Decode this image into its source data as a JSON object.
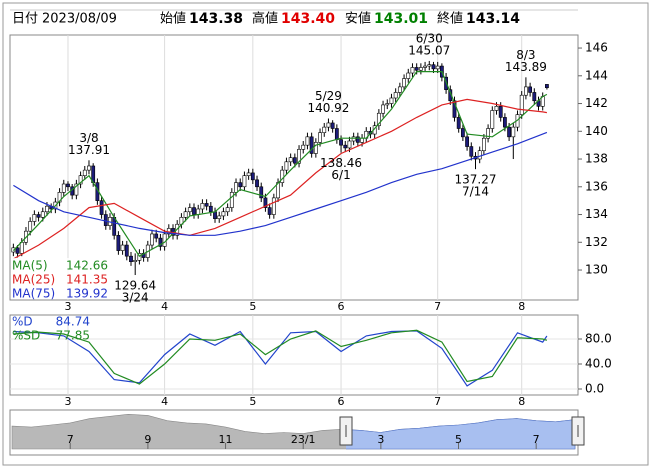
{
  "header": {
    "date_label": "日付",
    "date": "2023/08/09",
    "items": [
      {
        "label": "始値",
        "value": 143.38,
        "color": "#000000"
      },
      {
        "label": "高値",
        "value": 143.4,
        "value_label": "143.40",
        "color": "#e00000"
      },
      {
        "label": "安値",
        "value": 143.01,
        "color": "#008000"
      },
      {
        "label": "終値",
        "value": 143.14,
        "color": "#000000"
      }
    ]
  },
  "chart_data": [
    {
      "type": "candlestick",
      "xlim": [
        -0.8,
        134.4
      ],
      "xticks": [
        {
          "value": 13,
          "label": "3"
        },
        {
          "value": 36,
          "label": "4"
        },
        {
          "value": 57,
          "label": "5"
        },
        {
          "value": 78,
          "label": "6"
        },
        {
          "value": 101,
          "label": "7"
        },
        {
          "value": 121,
          "label": "8"
        }
      ],
      "ylim": [
        127.84,
        146.94
      ],
      "yticks": [
        130,
        132,
        134,
        136,
        138,
        140,
        142,
        144,
        146
      ],
      "up_color": "#ffffff",
      "down_color": "#1c1c78",
      "ohlc": [
        [
          131.3,
          131.9,
          131.0,
          131.6
        ],
        [
          131.6,
          131.8,
          130.9,
          131.2
        ],
        [
          131.2,
          132.3,
          131.0,
          132.0
        ],
        [
          132.0,
          133.1,
          131.8,
          132.8
        ],
        [
          132.8,
          133.8,
          132.5,
          133.5
        ],
        [
          133.5,
          134.3,
          133.2,
          134.0
        ],
        [
          134.0,
          134.2,
          133.5,
          133.8
        ],
        [
          133.8,
          134.5,
          133.5,
          134.2
        ],
        [
          134.2,
          134.9,
          133.9,
          134.6
        ],
        [
          134.6,
          134.8,
          134.1,
          134.4
        ],
        [
          134.4,
          135.2,
          134.1,
          134.9
        ],
        [
          134.9,
          135.9,
          134.6,
          135.6
        ],
        [
          135.6,
          136.5,
          135.3,
          136.2
        ],
        [
          136.2,
          136.4,
          135.7,
          136.0
        ],
        [
          136.0,
          136.2,
          135.1,
          135.4
        ],
        [
          135.4,
          136.5,
          135.1,
          136.2
        ],
        [
          136.2,
          137.1,
          135.9,
          136.8
        ],
        [
          136.8,
          137.5,
          136.5,
          137.2
        ],
        [
          137.2,
          137.91,
          136.9,
          137.5
        ],
        [
          137.5,
          137.7,
          136.0,
          136.3
        ],
        [
          136.3,
          136.6,
          134.7,
          135.0
        ],
        [
          135.0,
          135.3,
          133.7,
          134.0
        ],
        [
          134.0,
          134.3,
          132.9,
          133.2
        ],
        [
          133.2,
          134.1,
          132.9,
          133.8
        ],
        [
          133.8,
          134.1,
          132.2,
          132.5
        ],
        [
          132.5,
          132.8,
          131.1,
          131.4
        ],
        [
          131.4,
          132.1,
          131.1,
          131.8
        ],
        [
          131.8,
          132.1,
          130.7,
          131.0
        ],
        [
          131.0,
          131.3,
          130.3,
          130.6
        ],
        [
          130.6,
          131.2,
          129.64,
          130.7
        ],
        [
          130.7,
          131.5,
          130.4,
          131.2
        ],
        [
          131.2,
          131.5,
          130.6,
          130.9
        ],
        [
          130.9,
          132.1,
          130.6,
          131.8
        ],
        [
          131.8,
          132.9,
          131.5,
          132.6
        ],
        [
          132.6,
          132.9,
          132.0,
          132.3
        ],
        [
          132.3,
          132.6,
          131.4,
          131.7
        ],
        [
          131.7,
          132.9,
          131.4,
          132.6
        ],
        [
          132.6,
          133.3,
          132.3,
          133.0
        ],
        [
          133.0,
          133.3,
          132.2,
          132.5
        ],
        [
          132.5,
          133.6,
          132.2,
          133.3
        ],
        [
          133.3,
          134.1,
          133.0,
          133.8
        ],
        [
          133.8,
          134.5,
          133.5,
          134.2
        ],
        [
          134.2,
          134.8,
          133.9,
          134.5
        ],
        [
          134.5,
          134.8,
          133.7,
          134.0
        ],
        [
          134.0,
          134.7,
          133.7,
          134.4
        ],
        [
          134.4,
          135.1,
          134.1,
          134.8
        ],
        [
          134.8,
          135.1,
          134.3,
          134.6
        ],
        [
          134.6,
          134.9,
          133.9,
          134.2
        ],
        [
          134.2,
          134.5,
          133.4,
          133.7
        ],
        [
          133.7,
          134.2,
          133.4,
          133.9
        ],
        [
          133.9,
          134.5,
          133.6,
          134.2
        ],
        [
          134.2,
          134.8,
          133.9,
          134.5
        ],
        [
          134.5,
          135.9,
          134.2,
          135.6
        ],
        [
          135.6,
          136.6,
          135.3,
          136.3
        ],
        [
          136.3,
          136.6,
          135.7,
          136.0
        ],
        [
          136.0,
          137.1,
          135.7,
          136.8
        ],
        [
          136.8,
          137.3,
          136.5,
          137.0
        ],
        [
          137.0,
          137.3,
          136.2,
          136.5
        ],
        [
          136.5,
          136.8,
          135.7,
          136.0
        ],
        [
          136.0,
          136.3,
          134.9,
          135.2
        ],
        [
          135.2,
          135.5,
          134.2,
          134.5
        ],
        [
          134.5,
          134.8,
          133.7,
          134.0
        ],
        [
          134.0,
          135.5,
          133.7,
          135.2
        ],
        [
          135.2,
          136.6,
          134.9,
          136.3
        ],
        [
          136.3,
          137.5,
          136.0,
          137.2
        ],
        [
          137.2,
          138.1,
          136.9,
          137.8
        ],
        [
          137.8,
          138.4,
          137.5,
          138.1
        ],
        [
          138.1,
          138.4,
          137.4,
          137.7
        ],
        [
          137.7,
          139.0,
          137.4,
          138.7
        ],
        [
          138.7,
          139.3,
          138.4,
          139.0
        ],
        [
          139.0,
          139.9,
          138.7,
          139.6
        ],
        [
          139.6,
          139.9,
          138.1,
          138.4
        ],
        [
          138.4,
          139.5,
          138.1,
          139.2
        ],
        [
          139.2,
          140.2,
          138.9,
          139.9
        ],
        [
          139.9,
          140.6,
          139.6,
          140.3
        ],
        [
          140.3,
          140.92,
          140.0,
          140.6
        ],
        [
          140.6,
          140.8,
          139.9,
          140.2
        ],
        [
          140.2,
          140.5,
          139.1,
          139.4
        ],
        [
          139.4,
          139.7,
          138.46,
          139.0
        ],
        [
          139.0,
          139.3,
          138.5,
          138.8
        ],
        [
          138.8,
          139.6,
          138.5,
          139.3
        ],
        [
          139.3,
          139.9,
          139.0,
          139.6
        ],
        [
          139.6,
          139.9,
          138.9,
          139.2
        ],
        [
          139.2,
          139.8,
          138.9,
          139.5
        ],
        [
          139.5,
          140.3,
          139.2,
          140.0
        ],
        [
          140.0,
          140.3,
          139.5,
          139.8
        ],
        [
          139.8,
          140.7,
          139.5,
          140.4
        ],
        [
          140.4,
          141.6,
          140.1,
          141.3
        ],
        [
          141.3,
          142.2,
          141.0,
          141.9
        ],
        [
          141.9,
          142.3,
          141.6,
          142.0
        ],
        [
          142.0,
          142.7,
          141.7,
          142.4
        ],
        [
          142.4,
          143.1,
          142.1,
          142.8
        ],
        [
          142.8,
          143.5,
          142.5,
          143.2
        ],
        [
          143.2,
          144.1,
          142.9,
          143.8
        ],
        [
          143.8,
          144.5,
          143.5,
          144.2
        ],
        [
          144.2,
          144.9,
          143.9,
          144.6
        ],
        [
          144.6,
          144.9,
          144.1,
          144.4
        ],
        [
          144.4,
          144.9,
          144.1,
          144.6
        ],
        [
          144.6,
          145.0,
          144.3,
          144.7
        ],
        [
          144.7,
          145.07,
          144.4,
          144.8
        ],
        [
          144.8,
          145.0,
          144.2,
          144.5
        ],
        [
          144.5,
          145.0,
          144.2,
          144.7
        ],
        [
          144.7,
          144.9,
          143.6,
          143.9
        ],
        [
          143.9,
          144.2,
          142.7,
          143.0
        ],
        [
          143.0,
          143.3,
          141.9,
          142.2
        ],
        [
          142.2,
          142.5,
          140.7,
          141.0
        ],
        [
          141.0,
          141.3,
          139.9,
          140.2
        ],
        [
          140.2,
          140.5,
          139.3,
          139.6
        ],
        [
          139.6,
          139.9,
          138.6,
          138.9
        ],
        [
          138.9,
          139.2,
          137.9,
          138.2
        ],
        [
          138.2,
          138.5,
          137.27,
          138.0
        ],
        [
          138.0,
          138.9,
          137.7,
          138.6
        ],
        [
          138.6,
          139.8,
          138.3,
          139.5
        ],
        [
          139.5,
          140.5,
          139.2,
          140.2
        ],
        [
          140.2,
          141.8,
          139.9,
          141.5
        ],
        [
          141.5,
          142.1,
          141.2,
          141.8
        ],
        [
          141.8,
          142.1,
          140.7,
          141.0
        ],
        [
          141.0,
          141.3,
          140.0,
          140.3
        ],
        [
          140.3,
          140.6,
          139.3,
          139.6
        ],
        [
          139.6,
          140.6,
          138.0,
          140.3
        ],
        [
          140.3,
          141.5,
          140.0,
          141.2
        ],
        [
          141.2,
          142.9,
          140.9,
          142.6
        ],
        [
          142.6,
          143.89,
          142.3,
          143.2
        ],
        [
          143.2,
          143.5,
          142.5,
          142.8
        ],
        [
          142.8,
          143.1,
          141.9,
          142.2
        ],
        [
          142.2,
          142.5,
          141.5,
          141.8
        ],
        [
          141.8,
          142.8,
          141.5,
          142.5
        ],
        [
          143.38,
          143.4,
          143.01,
          143.14
        ]
      ],
      "series": [
        {
          "name": "MA(5)",
          "color": "#228b22",
          "last": 142.66,
          "x": [
            0,
            6,
            12,
            18,
            24,
            30,
            36,
            42,
            48,
            54,
            60,
            66,
            72,
            78,
            84,
            90,
            96,
            102,
            108,
            114,
            120,
            126,
            127
          ],
          "values": [
            131.4,
            133.3,
            135.3,
            136.8,
            133.8,
            131.0,
            132.0,
            133.9,
            134.2,
            135.8,
            135.3,
            137.2,
            139.0,
            139.5,
            139.5,
            141.6,
            144.3,
            144.3,
            139.8,
            139.6,
            140.8,
            142.5,
            142.66
          ]
        },
        {
          "name": "MA(25)",
          "color": "#dd2222",
          "last": 141.35,
          "x": [
            0,
            6,
            12,
            18,
            24,
            30,
            36,
            42,
            48,
            54,
            60,
            66,
            72,
            78,
            84,
            90,
            96,
            102,
            108,
            114,
            120,
            126,
            127
          ],
          "values": [
            130.8,
            131.8,
            133.0,
            134.5,
            134.8,
            133.8,
            132.8,
            132.5,
            133.0,
            133.8,
            134.6,
            135.4,
            137.0,
            138.4,
            139.2,
            140.0,
            141.0,
            141.9,
            142.3,
            142.0,
            141.6,
            141.4,
            141.35
          ]
        },
        {
          "name": "MA(75)",
          "color": "#2233cc",
          "last": 139.92,
          "x": [
            0,
            6,
            12,
            18,
            24,
            30,
            36,
            42,
            48,
            54,
            60,
            66,
            72,
            78,
            84,
            90,
            96,
            102,
            108,
            114,
            120,
            126,
            127
          ],
          "values": [
            136.1,
            135.0,
            134.2,
            133.8,
            133.4,
            133.0,
            132.7,
            132.5,
            132.5,
            132.8,
            133.2,
            133.8,
            134.4,
            135.0,
            135.6,
            136.3,
            136.9,
            137.3,
            137.9,
            138.5,
            139.1,
            139.8,
            139.92
          ]
        }
      ],
      "annotations": [
        {
          "date": "3/8",
          "value": 137.91
        },
        {
          "date": "3/24",
          "value": 129.64
        },
        {
          "date": "5/29",
          "value": 140.92
        },
        {
          "date": "6/1",
          "value": 138.46
        },
        {
          "date": "6/30",
          "value": 145.07
        },
        {
          "date": "7/14",
          "value": 137.27
        },
        {
          "date": "8/3",
          "value": 143.89
        }
      ]
    },
    {
      "type": "line",
      "xlim": [
        -0.8,
        134.4
      ],
      "xticks": [
        {
          "value": 13,
          "label": "3"
        },
        {
          "value": 36,
          "label": "4"
        },
        {
          "value": 57,
          "label": "5"
        },
        {
          "value": 78,
          "label": "6"
        },
        {
          "value": 101,
          "label": "7"
        },
        {
          "value": 121,
          "label": "8"
        }
      ],
      "ylim": [
        -9.6,
        118.4
      ],
      "yticks": [
        {
          "value": 80,
          "label": "80.0"
        },
        {
          "value": 40,
          "label": "40.0"
        },
        {
          "value": 0,
          "label": "0.0"
        }
      ],
      "series": [
        {
          "name": "%D",
          "color": "#2244cc",
          "last": 84.74,
          "x": [
            0,
            6,
            12,
            18,
            24,
            30,
            36,
            42,
            48,
            54,
            60,
            66,
            72,
            78,
            84,
            90,
            96,
            102,
            108,
            114,
            120,
            126,
            127
          ],
          "values": [
            92,
            90,
            85,
            60,
            15,
            10,
            55,
            88,
            70,
            92,
            40,
            90,
            92,
            60,
            85,
            92,
            93,
            65,
            5,
            30,
            90,
            75,
            84.74
          ]
        },
        {
          "name": "%SD",
          "color": "#228b22",
          "last": 77.85,
          "x": [
            0,
            6,
            12,
            18,
            24,
            30,
            36,
            42,
            48,
            54,
            60,
            66,
            72,
            78,
            84,
            90,
            96,
            102,
            108,
            114,
            120,
            126,
            127
          ],
          "values": [
            88,
            91,
            88,
            75,
            25,
            8,
            40,
            80,
            78,
            88,
            55,
            80,
            93,
            68,
            78,
            90,
            94,
            75,
            12,
            20,
            82,
            80,
            77.85
          ]
        }
      ]
    },
    {
      "type": "area",
      "xlim": [
        0,
        29
      ],
      "ylim": [
        110,
        152
      ],
      "color": "#b8b8b8",
      "selected_color": "#a8bff0",
      "xticks": [
        {
          "value": 3,
          "label": "7"
        },
        {
          "value": 7,
          "label": "9"
        },
        {
          "value": 11,
          "label": "11"
        },
        {
          "value": 15,
          "label": "23/1"
        },
        {
          "value": 19,
          "label": "3"
        },
        {
          "value": 23,
          "label": "5"
        },
        {
          "value": 27,
          "label": "7"
        }
      ],
      "values": [
        137,
        136,
        138,
        140,
        144,
        146,
        148,
        147,
        142,
        140,
        139,
        136,
        132,
        130,
        131,
        130,
        133,
        134,
        133,
        131,
        134,
        135,
        137,
        138,
        140,
        143,
        144,
        142,
        141,
        143
      ]
    }
  ]
}
